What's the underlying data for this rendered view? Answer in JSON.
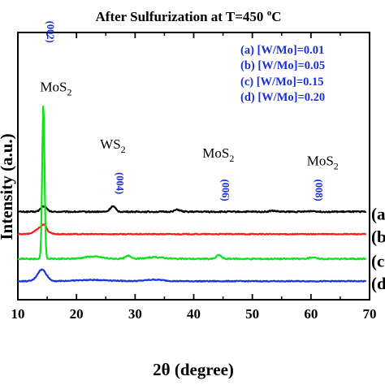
{
  "chart_data": {
    "type": "line",
    "title_main": "After Sulfurization at T=450 ",
    "title_sup": "o",
    "title_unit": "C",
    "xlabel": "2θ (degree)",
    "ylabel": "Intensity (a.u.)",
    "xlim": [
      10,
      70
    ],
    "x_ticks": [
      "10",
      "20",
      "30",
      "40",
      "50",
      "60",
      "70"
    ],
    "legend": [
      "(a) [W/Mo]=0.01",
      "(b) [W/Mo]=0.05",
      "(c) [W/Mo]=0.15",
      "(d) [W/Mo]=0.20"
    ],
    "legend_color": "#1a2fd6",
    "series": [
      {
        "label": "(a",
        "color": "#000000",
        "baseline": 0.57,
        "noise": 0.004,
        "peaks": [
          [
            14.4,
            0.035,
            0.5
          ],
          [
            26.2,
            0.035,
            0.45
          ],
          [
            37.2,
            0.013,
            0.5
          ],
          [
            53.5,
            0.006,
            0.6
          ],
          [
            60.2,
            0.005,
            0.6
          ]
        ]
      },
      {
        "label": "(b",
        "color": "#ff1a1a",
        "baseline": 0.425,
        "noise": 0.003,
        "peaks": [
          [
            14.0,
            0.045,
            0.9
          ],
          [
            14.5,
            0.025,
            0.3
          ]
        ]
      },
      {
        "label": "(c",
        "color": "#11e01f",
        "baseline": 0.265,
        "noise": 0.004,
        "peaks": [
          [
            14.35,
            1.0,
            0.2
          ],
          [
            22.8,
            0.015,
            1.5
          ],
          [
            28.9,
            0.02,
            0.5
          ],
          [
            33.5,
            0.01,
            1.5
          ],
          [
            44.3,
            0.025,
            0.4
          ],
          [
            60.2,
            0.01,
            0.5
          ]
        ]
      },
      {
        "label": "(d",
        "color": "#1a35d9",
        "baseline": 0.12,
        "noise": 0.003,
        "peaks": [
          [
            14.1,
            0.075,
            0.75
          ],
          [
            23.0,
            0.008,
            3.0
          ],
          [
            33.3,
            0.01,
            1.5
          ]
        ]
      }
    ],
    "annotations": [
      {
        "text": "MoS",
        "sub": "2",
        "x": 16.5,
        "y": 1.35
      },
      {
        "text": "WS",
        "sub": "2",
        "x": 26.2,
        "y": 0.98
      },
      {
        "text": "MoS",
        "sub": "2",
        "x": 44.2,
        "y": 0.92
      },
      {
        "text": "MoS",
        "sub": "2",
        "x": 62.0,
        "y": 0.87
      }
    ],
    "index_labels": [
      {
        "text": "(002)",
        "x": 14.4,
        "y": 1.735
      },
      {
        "text": "(004)",
        "x": 26.3,
        "y": 0.755
      },
      {
        "text": "(006)",
        "x": 44.3,
        "y": 0.71
      },
      {
        "text": "(008)",
        "x": 60.2,
        "y": 0.71
      }
    ]
  }
}
